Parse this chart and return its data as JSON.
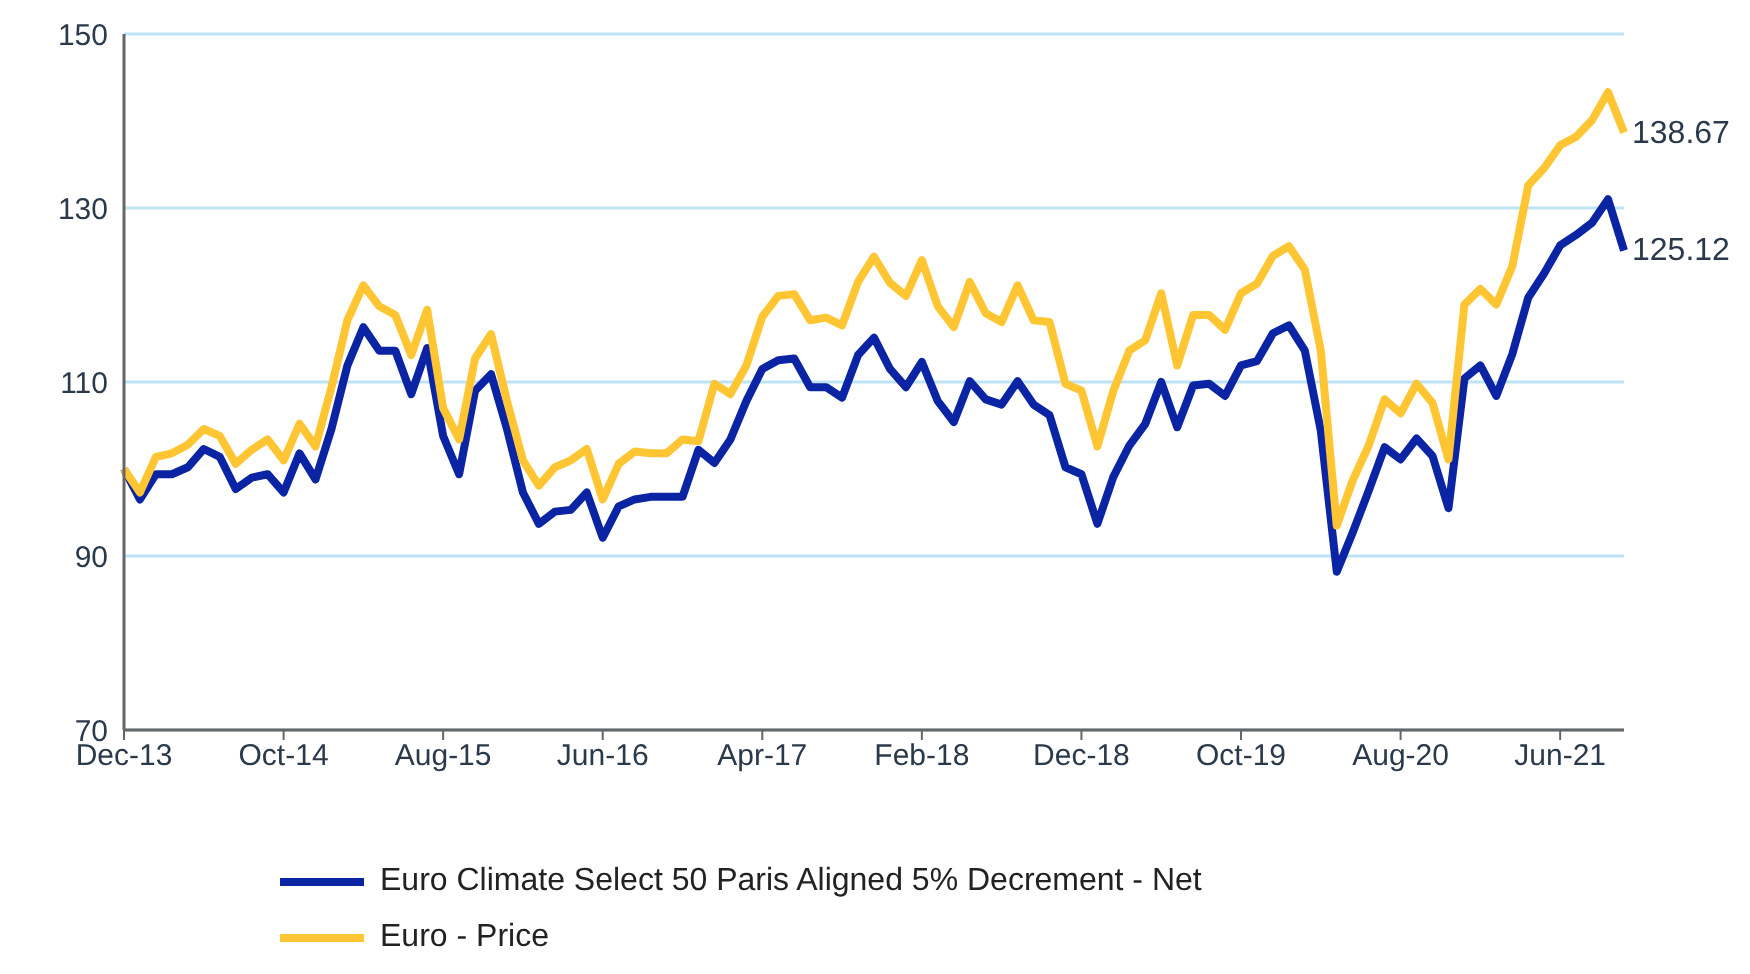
{
  "chart_data": {
    "type": "line",
    "categories": [
      "Dec-13",
      null,
      null,
      null,
      null,
      null,
      null,
      null,
      null,
      null,
      "Oct-14",
      null,
      null,
      null,
      null,
      null,
      null,
      null,
      null,
      null,
      "Aug-15",
      null,
      null,
      null,
      null,
      null,
      null,
      null,
      null,
      null,
      "Jun-16",
      null,
      null,
      null,
      null,
      null,
      null,
      null,
      null,
      null,
      "Apr-17",
      null,
      null,
      null,
      null,
      null,
      null,
      null,
      null,
      null,
      "Feb-18",
      null,
      null,
      null,
      null,
      null,
      null,
      null,
      null,
      null,
      "Dec-18",
      null,
      null,
      null,
      null,
      null,
      null,
      null,
      null,
      null,
      "Oct-19",
      null,
      null,
      null,
      null,
      null,
      null,
      null,
      null,
      null,
      "Aug-20",
      null,
      null,
      null,
      null,
      null,
      null,
      null,
      null,
      null,
      "Jun-21",
      null,
      null,
      null,
      null
    ],
    "series": [
      {
        "name": "Euro Climate Select 50 Paris Aligned 5% Decrement - Net",
        "color": "#0a24a3",
        "values": [
          100,
          96.5,
          99.4,
          99.4,
          100.2,
          102.3,
          101.4,
          97.7,
          99,
          99.4,
          97.3,
          101.8,
          98.8,
          104.6,
          111.9,
          116.3,
          113.6,
          113.6,
          108.6,
          113.9,
          103.8,
          99.4,
          109,
          110.9,
          104.6,
          97.3,
          93.7,
          95.1,
          95.3,
          97.3,
          92.1,
          95.7,
          96.5,
          96.8,
          96.8,
          96.8,
          102.2,
          100.7,
          103.4,
          107.8,
          111.5,
          112.5,
          112.7,
          109.4,
          109.4,
          108.2,
          113.1,
          115.1,
          111.5,
          109.4,
          112.3,
          107.8,
          105.4,
          110.1,
          108,
          107.4,
          110.1,
          107.4,
          106.2,
          100.2,
          99.4,
          93.7,
          99.1,
          102.7,
          105.2,
          110,
          104.8,
          109.6,
          109.8,
          108.4,
          111.9,
          112.4,
          115.6,
          116.5,
          113.6,
          104.4,
          88.2,
          92.7,
          97.5,
          102.5,
          101.1,
          103.5,
          101.5,
          95.5,
          110.4,
          111.9,
          108.4,
          113.2,
          119.7,
          122.5,
          125.7,
          126.9,
          128.3,
          131,
          125.12
        ],
        "value_labels": [
          null,
          null,
          null,
          null,
          null,
          null,
          null,
          null,
          null,
          null,
          null,
          null,
          null,
          null,
          null,
          null,
          null,
          null,
          null,
          null,
          null,
          null,
          null,
          null,
          null,
          null,
          null,
          null,
          null,
          null,
          null,
          null,
          null,
          null,
          null,
          null,
          null,
          null,
          null,
          null,
          null,
          null,
          null,
          null,
          null,
          null,
          null,
          null,
          null,
          null,
          null,
          null,
          null,
          null,
          null,
          null,
          null,
          null,
          null,
          null,
          null,
          null,
          null,
          null,
          null,
          null,
          null,
          null,
          null,
          null,
          null,
          null,
          null,
          null,
          null,
          null,
          null,
          null,
          null,
          null,
          null,
          null,
          null,
          null,
          null,
          null,
          null,
          null,
          null,
          null,
          null,
          null,
          null,
          null,
          "125.12"
        ]
      },
      {
        "name": "Euro - Price",
        "color": "#ffc533",
        "values": [
          100,
          97.3,
          101.4,
          101.8,
          102.8,
          104.6,
          103.8,
          100.6,
          102.2,
          103.4,
          101,
          105.2,
          102.6,
          109.4,
          117.1,
          121.1,
          118.7,
          117.7,
          113.1,
          118.3,
          107,
          103.4,
          112.7,
          115.5,
          107.8,
          101,
          98.1,
          100.2,
          101,
          102.3,
          96.5,
          100.6,
          102,
          101.8,
          101.8,
          103.4,
          103.2,
          109.8,
          108.6,
          111.9,
          117.5,
          119.9,
          120.1,
          117.1,
          117.4,
          116.5,
          121.5,
          124.4,
          121.4,
          119.9,
          124,
          118.7,
          116.3,
          121.5,
          117.9,
          116.9,
          121.1,
          117.1,
          116.9,
          109.8,
          109,
          102.6,
          109,
          113.6,
          114.8,
          120.2,
          111.9,
          117.7,
          117.7,
          116,
          120.2,
          121.3,
          124.5,
          125.6,
          122.9,
          113.6,
          93.5,
          98.7,
          102.7,
          108,
          106.4,
          109.8,
          107.6,
          101.1,
          118.9,
          120.7,
          118.9,
          123.3,
          132.6,
          134.6,
          137.2,
          138.2,
          140.1,
          143.3,
          138.67
        ],
        "value_labels": [
          null,
          null,
          null,
          null,
          null,
          null,
          null,
          null,
          null,
          null,
          null,
          null,
          null,
          null,
          null,
          null,
          null,
          null,
          null,
          null,
          null,
          null,
          null,
          null,
          null,
          null,
          null,
          null,
          null,
          null,
          null,
          null,
          null,
          null,
          null,
          null,
          null,
          null,
          null,
          null,
          null,
          null,
          null,
          null,
          null,
          null,
          null,
          null,
          null,
          null,
          null,
          null,
          null,
          null,
          null,
          null,
          null,
          null,
          null,
          null,
          null,
          null,
          null,
          null,
          null,
          null,
          null,
          null,
          null,
          null,
          null,
          null,
          null,
          null,
          null,
          null,
          null,
          null,
          null,
          null,
          null,
          null,
          null,
          null,
          null,
          null,
          null,
          null,
          null,
          null,
          null,
          null,
          null,
          null,
          "138.67"
        ]
      }
    ],
    "ylim": [
      70,
      150
    ],
    "yticks": [
      70,
      90,
      110,
      130,
      150
    ],
    "grid": "y",
    "legend": "bottom",
    "marker": "none",
    "line_style": "solid"
  }
}
